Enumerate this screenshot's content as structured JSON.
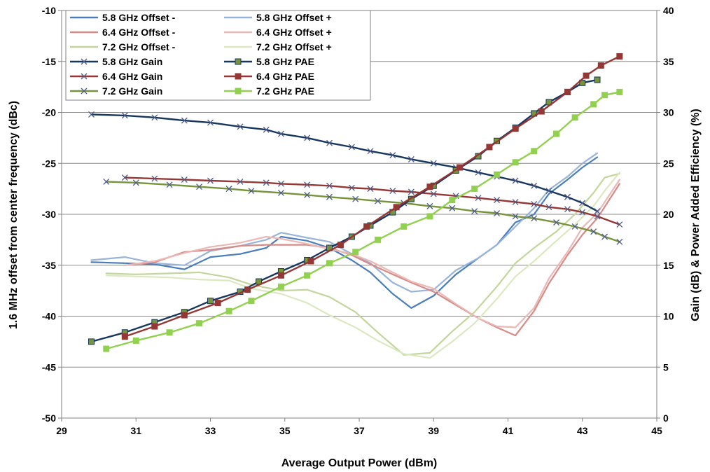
{
  "chart_data": {
    "type": "line",
    "title": "",
    "xlabel": "Average Output Power (dBm)",
    "ylabel": "1.6 MHz offset from center frequency (dBc)",
    "y2label": "Gain (dB) & Power Added Efficiency (%)",
    "xlim": [
      29,
      45
    ],
    "ylim": [
      -50,
      -10
    ],
    "y2lim": [
      0,
      40
    ],
    "x_ticks": [
      "29",
      "31",
      "33",
      "35",
      "37",
      "39",
      "41",
      "43",
      "45"
    ],
    "y_ticks": [
      "-10",
      "-15",
      "-20",
      "-25",
      "-30",
      "-35",
      "-40",
      "-45",
      "-50"
    ],
    "y2_ticks": [
      "40",
      "35",
      "30",
      "25",
      "20",
      "15",
      "10",
      "5",
      "0"
    ],
    "grid": true,
    "legend_position": "top-left",
    "series": [
      {
        "name": "5.8 GHz Offset -",
        "axis": "left",
        "color": "#4a7ebb",
        "marker": "none",
        "x": [
          29.8,
          30.7,
          31.5,
          32.3,
          33.0,
          33.8,
          34.5,
          34.9,
          35.6,
          36.2,
          36.8,
          37.3,
          37.9,
          38.4,
          39.0,
          39.6,
          40.2,
          40.7,
          41.2,
          41.7,
          42.1,
          42.6,
          43.0,
          43.4
        ],
        "y": [
          -34.7,
          -34.8,
          -34.9,
          -35.4,
          -34.2,
          -33.9,
          -33.3,
          -32.2,
          -32.6,
          -33.3,
          -34.5,
          -35.7,
          -37.8,
          -39.2,
          -38.0,
          -35.9,
          -34.3,
          -33.0,
          -30.8,
          -30.0,
          -28.0,
          -26.6,
          -25.4,
          -24.4
        ]
      },
      {
        "name": "5.8 GHz Offset +",
        "axis": "left",
        "color": "#98b4d9",
        "marker": "none",
        "x": [
          29.8,
          30.7,
          31.5,
          32.3,
          33.0,
          33.8,
          34.5,
          34.9,
          35.6,
          36.2,
          36.8,
          37.3,
          37.9,
          38.4,
          39.0,
          39.6,
          40.2,
          40.7,
          41.2,
          41.7,
          42.1,
          42.6,
          43.0,
          43.4
        ],
        "y": [
          -34.5,
          -34.2,
          -34.8,
          -35.0,
          -33.6,
          -33.1,
          -32.5,
          -31.8,
          -32.3,
          -32.7,
          -33.9,
          -34.8,
          -36.7,
          -37.6,
          -37.4,
          -35.5,
          -34.3,
          -33.0,
          -31.2,
          -29.4,
          -27.6,
          -26.3,
          -25.0,
          -24.0
        ]
      },
      {
        "name": "6.4 GHz Offset -",
        "axis": "left",
        "color": "#d88a86",
        "marker": "none",
        "x": [
          30.7,
          31.5,
          32.3,
          33.0,
          33.8,
          34.5,
          34.9,
          35.6,
          36.2,
          36.8,
          37.3,
          37.9,
          38.4,
          39.0,
          39.6,
          40.2,
          40.7,
          41.2,
          41.7,
          42.1,
          42.6,
          43.0,
          43.4,
          44.0
        ],
        "y": [
          -35.0,
          -34.7,
          -33.7,
          -33.5,
          -33.1,
          -33.0,
          -33.0,
          -33.0,
          -33.3,
          -34.0,
          -34.9,
          -35.9,
          -36.7,
          -37.6,
          -38.9,
          -40.2,
          -41.1,
          -41.9,
          -39.5,
          -36.8,
          -34.0,
          -32.0,
          -30.4,
          -27.0
        ]
      },
      {
        "name": "6.4 GHz Offset +",
        "axis": "left",
        "color": "#ebb8b6",
        "marker": "none",
        "x": [
          30.7,
          31.5,
          32.3,
          33.0,
          33.8,
          34.5,
          34.9,
          35.6,
          36.2,
          36.8,
          37.3,
          37.9,
          38.4,
          39.0,
          39.6,
          40.2,
          40.7,
          41.2,
          41.7,
          42.1,
          42.6,
          43.0,
          43.4,
          44.0
        ],
        "y": [
          -35.0,
          -34.6,
          -33.8,
          -33.2,
          -32.8,
          -32.2,
          -32.4,
          -32.9,
          -33.4,
          -33.9,
          -34.6,
          -35.7,
          -36.6,
          -37.3,
          -38.8,
          -40.2,
          -41.0,
          -41.1,
          -39.2,
          -36.3,
          -33.7,
          -31.3,
          -29.9,
          -26.6
        ]
      },
      {
        "name": "7.2 GHz Offset -",
        "axis": "left",
        "color": "#c2d69b",
        "marker": "none",
        "x": [
          30.2,
          31.0,
          31.9,
          32.7,
          33.5,
          34.1,
          34.9,
          35.6,
          36.2,
          36.9,
          37.5,
          38.2,
          38.9,
          39.5,
          40.1,
          40.7,
          41.2,
          41.7,
          42.3,
          42.8,
          43.3,
          43.6,
          44.0
        ],
        "y": [
          -35.8,
          -35.9,
          -35.8,
          -35.7,
          -36.2,
          -36.9,
          -37.5,
          -37.4,
          -38.1,
          -39.6,
          -41.6,
          -43.8,
          -43.6,
          -41.5,
          -39.6,
          -37.1,
          -34.8,
          -33.3,
          -31.7,
          -30.0,
          -27.9,
          -26.4,
          -26.0
        ]
      },
      {
        "name": "7.2 GHz Offset +",
        "axis": "left",
        "color": "#dbe8c1",
        "marker": "none",
        "x": [
          30.2,
          31.0,
          31.9,
          32.7,
          33.5,
          34.1,
          34.9,
          35.6,
          36.2,
          36.9,
          37.5,
          38.2,
          38.9,
          39.5,
          40.1,
          40.7,
          41.2,
          41.7,
          42.3,
          42.8,
          43.3,
          43.6,
          44.0
        ],
        "y": [
          -36.0,
          -36.1,
          -36.2,
          -36.4,
          -36.5,
          -37.3,
          -37.8,
          -38.7,
          -39.9,
          -41.1,
          -42.4,
          -43.7,
          -44.1,
          -42.5,
          -40.7,
          -38.3,
          -36.1,
          -34.6,
          -32.6,
          -31.0,
          -29.2,
          -27.7,
          -25.9
        ]
      },
      {
        "name": "5.8 GHz Gain",
        "axis": "right",
        "color": "#17375e",
        "marker": "x",
        "x": [
          29.8,
          30.7,
          31.5,
          32.3,
          33.0,
          33.8,
          34.5,
          34.9,
          35.6,
          36.2,
          36.8,
          37.3,
          37.9,
          38.4,
          39.0,
          39.6,
          40.2,
          40.7,
          41.2,
          41.7,
          42.1,
          42.6,
          43.0,
          43.4
        ],
        "y": [
          29.8,
          29.7,
          29.5,
          29.2,
          29.0,
          28.6,
          28.3,
          27.9,
          27.5,
          27.0,
          26.6,
          26.2,
          25.8,
          25.4,
          25.0,
          24.6,
          24.1,
          23.7,
          23.3,
          22.8,
          22.3,
          21.7,
          21.1,
          20.3
        ]
      },
      {
        "name": "6.4 GHz Gain",
        "axis": "right",
        "color": "#953735",
        "marker": "x",
        "x": [
          30.7,
          31.5,
          32.3,
          33.0,
          33.8,
          34.5,
          34.9,
          35.6,
          36.2,
          36.8,
          37.3,
          37.9,
          38.4,
          39.0,
          39.6,
          40.2,
          40.7,
          41.2,
          41.7,
          42.1,
          42.6,
          43.0,
          43.4,
          44.0
        ],
        "y": [
          23.6,
          23.5,
          23.4,
          23.3,
          23.2,
          23.1,
          23.0,
          22.9,
          22.8,
          22.6,
          22.5,
          22.3,
          22.2,
          22.0,
          21.8,
          21.6,
          21.4,
          21.2,
          21.0,
          20.7,
          20.5,
          20.2,
          19.8,
          19.0
        ]
      },
      {
        "name": "7.2 GHz Gain",
        "axis": "right",
        "color": "#77933c",
        "marker": "x",
        "x": [
          30.2,
          31.0,
          31.9,
          32.7,
          33.5,
          34.1,
          34.9,
          35.6,
          36.2,
          36.9,
          37.5,
          38.2,
          38.9,
          39.5,
          40.1,
          40.7,
          41.2,
          41.7,
          42.3,
          42.8,
          43.3,
          43.6,
          44.0
        ],
        "y": [
          23.2,
          23.1,
          22.9,
          22.7,
          22.5,
          22.3,
          22.1,
          21.9,
          21.7,
          21.5,
          21.3,
          21.1,
          20.8,
          20.6,
          20.3,
          20.1,
          19.8,
          19.6,
          19.2,
          18.8,
          18.3,
          17.8,
          17.3
        ]
      },
      {
        "name": "5.8 GHz PAE",
        "axis": "right",
        "color": "#17375e",
        "marker": "square",
        "marker_color": "#77933c",
        "x": [
          29.8,
          30.7,
          31.5,
          32.3,
          33.0,
          33.8,
          34.3,
          34.9,
          35.6,
          36.2,
          36.8,
          37.3,
          37.9,
          38.4,
          39.0,
          39.6,
          40.2,
          40.7,
          41.2,
          41.7,
          42.1,
          42.6,
          43.0,
          43.4
        ],
        "y": [
          7.5,
          8.4,
          9.4,
          10.4,
          11.5,
          12.4,
          13.4,
          14.4,
          15.5,
          16.7,
          17.8,
          18.9,
          20.2,
          21.5,
          22.8,
          24.3,
          25.7,
          27.2,
          28.5,
          29.9,
          31.0,
          32.0,
          32.9,
          33.2
        ]
      },
      {
        "name": "6.4 GHz PAE",
        "axis": "right",
        "color": "#953735",
        "marker": "square",
        "x": [
          30.7,
          31.5,
          32.3,
          33.2,
          34.0,
          34.9,
          35.7,
          36.5,
          37.2,
          38.0,
          38.9,
          39.7,
          40.5,
          41.2,
          41.9,
          42.6,
          43.1,
          43.5,
          44.0
        ],
        "y": [
          8.0,
          9.0,
          10.1,
          11.3,
          12.6,
          14.0,
          15.4,
          17.0,
          18.8,
          20.7,
          22.7,
          24.6,
          26.6,
          28.4,
          30.1,
          32.0,
          33.6,
          34.6,
          35.5
        ]
      },
      {
        "name": "7.2 GHz PAE",
        "axis": "right",
        "color": "#92d050",
        "marker": "square",
        "x": [
          30.2,
          31.0,
          31.9,
          32.7,
          33.5,
          34.1,
          34.9,
          35.6,
          36.2,
          36.9,
          37.5,
          38.2,
          38.9,
          39.5,
          40.1,
          40.7,
          41.2,
          41.7,
          42.3,
          42.8,
          43.3,
          43.6,
          44.0
        ],
        "y": [
          6.8,
          7.6,
          8.4,
          9.3,
          10.5,
          11.5,
          12.9,
          14.0,
          15.2,
          16.3,
          17.5,
          18.8,
          19.8,
          21.4,
          22.5,
          23.9,
          25.1,
          26.2,
          27.9,
          29.5,
          30.8,
          31.7,
          32.0
        ]
      }
    ]
  }
}
